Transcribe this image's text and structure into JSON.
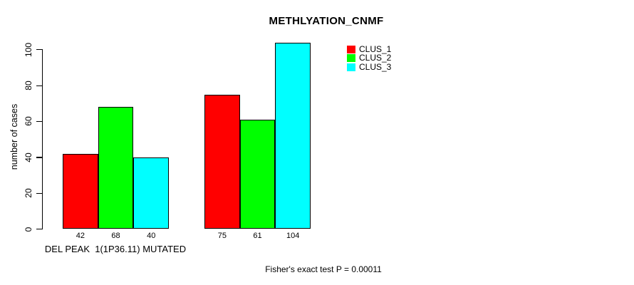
{
  "chart_data": {
    "type": "bar",
    "title": "METHLYATION_CNMF",
    "ylabel": "number of cases",
    "xlabel": "",
    "yticks": [
      0,
      20,
      40,
      60,
      80,
      100
    ],
    "ylim": [
      0,
      104
    ],
    "grid": false,
    "legend_position": "top-right",
    "bar_border_color": "#000000",
    "categories": [
      "DEL PEAK  1(1P36.11) MUTATED",
      ""
    ],
    "series": [
      {
        "name": "CLUS_1",
        "color": "#ff0000",
        "values": [
          42,
          75
        ]
      },
      {
        "name": "CLUS_2",
        "color": "#00ff00",
        "values": [
          68,
          61
        ]
      },
      {
        "name": "CLUS_3",
        "color": "#00ffff",
        "values": [
          40,
          104
        ]
      }
    ],
    "bar_value_labels": [
      [
        42,
        68,
        40
      ],
      [
        75,
        61,
        104
      ]
    ],
    "footnote": "Fisher's exact test P = 0.00011"
  }
}
